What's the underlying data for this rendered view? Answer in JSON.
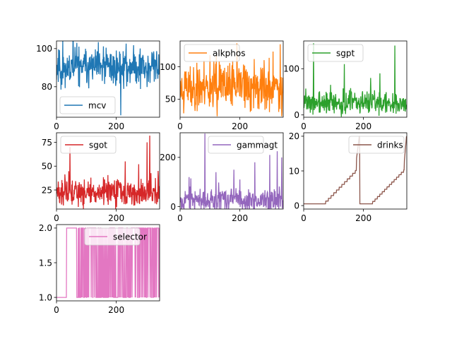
{
  "chart_data": [
    {
      "type": "line",
      "series": [
        {
          "name": "mcv",
          "color": "#1f77b4"
        }
      ],
      "xlim": [
        0,
        345
      ],
      "ylim": [
        64,
        104
      ],
      "xticks": [
        0,
        200
      ],
      "xtick_labels": [
        "0",
        "200"
      ],
      "yticks": [
        80,
        100
      ],
      "ytick_labels": [
        "80",
        "100"
      ],
      "generator": {
        "base": 90,
        "noise": 5,
        "seed": 11,
        "spikes": [
          [
            215,
            65
          ],
          [
            68,
            103
          ],
          [
            260,
            97
          ]
        ]
      },
      "legend": "lower-left"
    },
    {
      "type": "line",
      "series": [
        {
          "name": "alkphos",
          "color": "#ff7f0e"
        }
      ],
      "xlim": [
        0,
        345
      ],
      "ylim": [
        22,
        140
      ],
      "xticks": [
        0,
        200
      ],
      "xtick_labels": [
        "0",
        "200"
      ],
      "yticks": [
        50,
        100
      ],
      "ytick_labels": [
        "50",
        "100"
      ],
      "generator": {
        "base": 68,
        "noise": 18,
        "seed": 23,
        "spikes": [
          [
            12,
            28
          ],
          [
            335,
            135
          ],
          [
            248,
            112
          ],
          [
            100,
            118
          ]
        ]
      },
      "legend": "upper-left"
    },
    {
      "type": "line",
      "series": [
        {
          "name": "sgpt",
          "color": "#2ca02c"
        }
      ],
      "xlim": [
        0,
        345
      ],
      "ylim": [
        -5,
        160
      ],
      "xticks": [
        0,
        200
      ],
      "xtick_labels": [
        "0",
        "200"
      ],
      "yticks": [
        0,
        100
      ],
      "ytick_labels": [
        "0",
        "100"
      ],
      "generator": {
        "base": 25,
        "noise": 12,
        "seed": 37,
        "spikes": [
          [
            33,
            155
          ],
          [
            305,
            150
          ],
          [
            136,
            110
          ],
          [
            224,
            80
          ],
          [
            255,
            90
          ],
          [
            90,
            65
          ],
          [
            3,
            42
          ]
        ]
      },
      "legend": "upper-left"
    },
    {
      "type": "line",
      "series": [
        {
          "name": "sgot",
          "color": "#d62728"
        }
      ],
      "xlim": [
        0,
        345
      ],
      "ylim": [
        5,
        85
      ],
      "xticks": [
        0,
        200
      ],
      "xtick_labels": [
        "0",
        "200"
      ],
      "yticks": [
        25,
        50,
        75
      ],
      "ytick_labels": [
        "25",
        "50",
        "75"
      ],
      "generator": {
        "base": 22,
        "noise": 7,
        "seed": 51,
        "spikes": [
          [
            312,
            82
          ],
          [
            303,
            75
          ],
          [
            45,
            70
          ],
          [
            230,
            55
          ],
          [
            275,
            52
          ],
          [
            340,
            45
          ],
          [
            115,
            38
          ]
        ]
      },
      "legend": "upper-left"
    },
    {
      "type": "line",
      "series": [
        {
          "name": "gammagt",
          "color": "#9467bd"
        }
      ],
      "xlim": [
        0,
        345
      ],
      "ylim": [
        -10,
        300
      ],
      "xticks": [
        0,
        200
      ],
      "xtick_labels": [
        "0",
        "200"
      ],
      "yticks": [
        0,
        200
      ],
      "ytick_labels": [
        "0",
        "200"
      ],
      "generator": {
        "base": 28,
        "noise": 22,
        "seed": 67,
        "spikes": [
          [
            83,
            297
          ],
          [
            325,
            225
          ],
          [
            300,
            210
          ],
          [
            250,
            180
          ],
          [
            180,
            150
          ],
          [
            120,
            140
          ],
          [
            30,
            120
          ],
          [
            200,
            110
          ],
          [
            340,
            200
          ]
        ]
      },
      "legend": "upper-center"
    },
    {
      "type": "line",
      "series": [
        {
          "name": "drinks",
          "color": "#8c564b"
        }
      ],
      "xlim": [
        0,
        345
      ],
      "ylim": [
        -1,
        21
      ],
      "xticks": [
        0,
        200
      ],
      "xtick_labels": [
        "0",
        "200"
      ],
      "yticks": [
        0,
        10,
        20
      ],
      "ytick_labels": [
        "0",
        "10",
        "20"
      ],
      "generator": {
        "pattern": "drinks"
      },
      "legend": "upper-right"
    },
    {
      "type": "line",
      "series": [
        {
          "name": "selector",
          "color": "#e377c2"
        }
      ],
      "xlim": [
        0,
        345
      ],
      "ylim": [
        0.95,
        2.05
      ],
      "xticks": [
        0,
        200
      ],
      "xtick_labels": [
        "0",
        "200"
      ],
      "yticks": [
        1.0,
        1.5,
        2.0
      ],
      "ytick_labels": [
        "1.0",
        "1.5",
        "2.0"
      ],
      "generator": {
        "pattern": "selector",
        "seed": 83
      },
      "legend": "upper-center"
    }
  ]
}
